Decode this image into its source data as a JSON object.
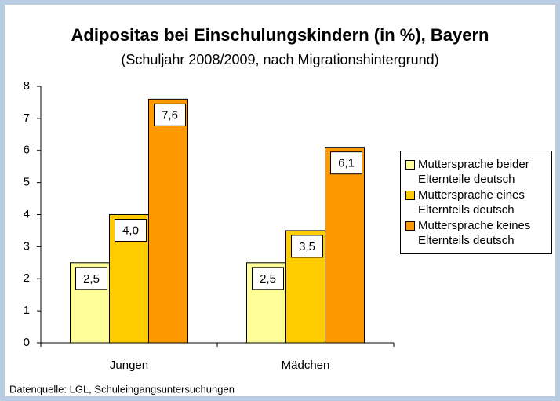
{
  "chart_data": {
    "type": "bar",
    "title": "Adipositas bei Einschulungskindern (in %), Bayern",
    "subtitle": "(Schuljahr 2008/2009, nach Migrationshintergrund)",
    "categories": [
      "Jungen",
      "Mädchen"
    ],
    "series": [
      {
        "name": "Muttersprache beider Elternteile deutsch",
        "color": "#ffff99",
        "values": [
          2.5,
          2.5
        ],
        "value_labels": [
          "2,5",
          "2,5"
        ]
      },
      {
        "name": "Muttersprache eines Elternteils deutsch",
        "color": "#ffcc00",
        "values": [
          4.0,
          3.5
        ],
        "value_labels": [
          "4,0",
          "3,5"
        ]
      },
      {
        "name": "Muttersprache keines Elternteils deutsch",
        "color": "#ff9900",
        "values": [
          7.6,
          6.1
        ],
        "value_labels": [
          "7,6",
          "6,1"
        ]
      }
    ],
    "ylim": [
      0,
      8
    ],
    "yticks": [
      0,
      1,
      2,
      3,
      4,
      5,
      6,
      7,
      8
    ],
    "grid": false,
    "legend": "right",
    "source": "Datenquelle: LGL, Schuleingangsuntersuchungen"
  }
}
